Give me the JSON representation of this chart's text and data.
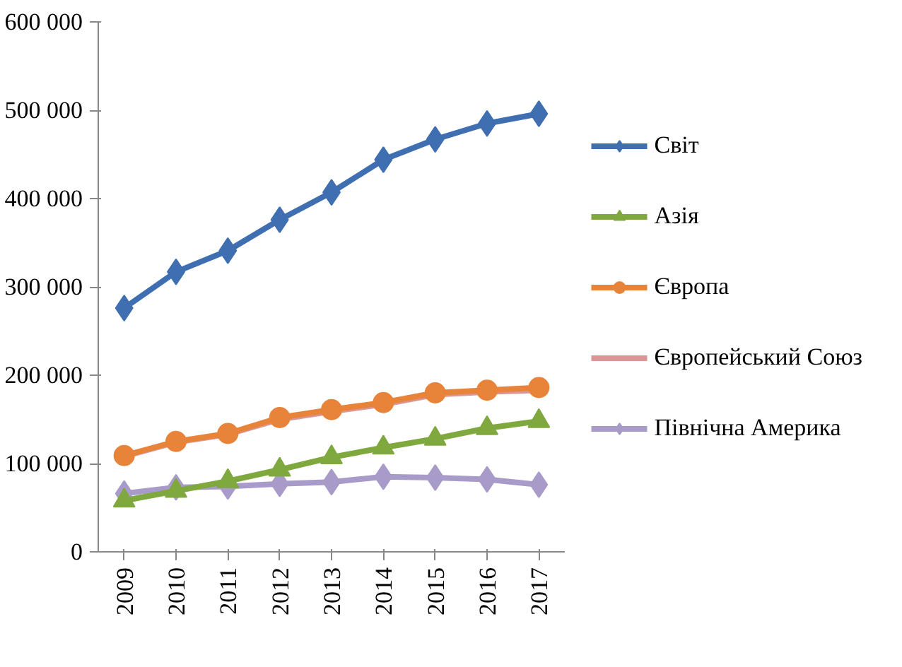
{
  "chart_data": {
    "type": "line",
    "categories": [
      "2009",
      "2010",
      "2011",
      "2012",
      "2013",
      "2014",
      "2015",
      "2016",
      "2017"
    ],
    "ylim": [
      0,
      600000
    ],
    "yticks": [
      {
        "value": 0,
        "label": "0"
      },
      {
        "value": 100000,
        "label": "100 000"
      },
      {
        "value": 200000,
        "label": "200 000"
      },
      {
        "value": 300000,
        "label": "300 000"
      },
      {
        "value": 400000,
        "label": "400 000"
      },
      {
        "value": 500000,
        "label": "500 000"
      },
      {
        "value": 600000,
        "label": "600 000"
      }
    ],
    "grid": false,
    "legend": "right",
    "series": [
      {
        "name": "Світ",
        "color": "#3f6fb0",
        "marker": "diamond",
        "values": [
          276000,
          317000,
          341000,
          376000,
          407000,
          444000,
          467000,
          485000,
          496000
        ]
      },
      {
        "name": "Азія",
        "color": "#7fa83e",
        "marker": "triangle",
        "values": [
          58000,
          69000,
          80000,
          93000,
          107000,
          118000,
          128000,
          140000,
          148000
        ]
      },
      {
        "name": "Європа",
        "color": "#e8833a",
        "marker": "circle",
        "values": [
          109000,
          125000,
          134000,
          152000,
          161000,
          169000,
          180000,
          183000,
          186000
        ]
      },
      {
        "name": "Європейський Союз",
        "color": "#d99694",
        "marker": "none",
        "values": [
          108000,
          124000,
          133000,
          150000,
          159000,
          167000,
          178000,
          181000,
          183000
        ]
      },
      {
        "name": "Північна Америка",
        "color": "#a99bc9",
        "marker": "diamond",
        "values": [
          66000,
          73000,
          74000,
          77000,
          79000,
          85000,
          84000,
          82000,
          76000
        ]
      }
    ]
  }
}
